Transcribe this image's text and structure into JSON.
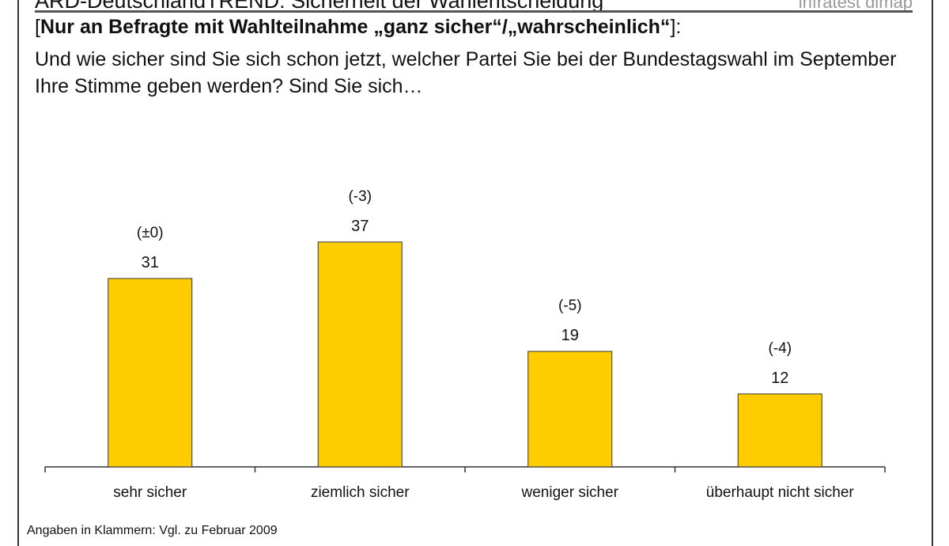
{
  "header": {
    "title": "ARD-DeutschlandTREND: Sicherheit der Wahlentscheidung",
    "brand": "infratest dimap",
    "filter_open": "[",
    "filter_bold": "Nur an Befragte mit Wahlteilnahme „ganz sicher“/„wahrscheinlich“",
    "filter_close": "]:",
    "question": "Und wie sicher sind Sie sich schon jetzt, welcher Partei Sie bei der Bundestagswahl im September Ihre Stimme geben werden? Sind Sie sich…"
  },
  "footnote": "Angaben in Klammern: Vgl. zu Februar 2009",
  "chart_data": {
    "type": "bar",
    "categories": [
      "sehr sicher",
      "ziemlich sicher",
      "weniger sicher",
      "überhaupt nicht sicher"
    ],
    "values": [
      31,
      37,
      19,
      12
    ],
    "changes": [
      "(±0)",
      "(-3)",
      "(-5)",
      "(-4)"
    ],
    "title": "",
    "xlabel": "",
    "ylabel": "",
    "ylim": [
      0,
      40
    ],
    "grid": false,
    "bar_color": "#FFCC00",
    "bar_outline": "#333333"
  }
}
